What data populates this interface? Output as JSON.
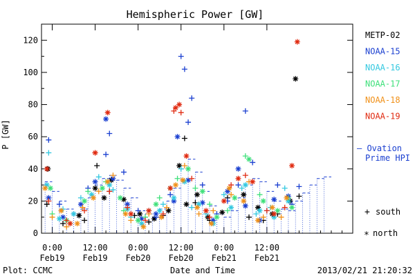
{
  "chart_data": {
    "type": "scatter",
    "title": "Hemispheric Power [GW]",
    "ylabel": "P [GW]",
    "xlabel": "Date and Time",
    "ylim": [
      0,
      130
    ],
    "yticks": [
      0,
      20,
      40,
      60,
      80,
      100,
      120
    ],
    "xlim": [
      -3,
      84
    ],
    "x_unit": "hours since Feb19 00:00",
    "xticks": [
      {
        "x": 0,
        "time": "0:00",
        "date": "Feb19"
      },
      {
        "x": 12,
        "time": "12:00",
        "date": "Feb19"
      },
      {
        "x": 24,
        "time": "0:00",
        "date": "Feb20"
      },
      {
        "x": 36,
        "time": "12:00",
        "date": "Feb20"
      },
      {
        "x": 48,
        "time": "0:00",
        "date": "Feb21"
      },
      {
        "x": 60,
        "time": "12:00",
        "date": "Feb21"
      }
    ],
    "legend": [
      {
        "name": "METP-02",
        "color": "#000000"
      },
      {
        "name": "NOAA-15",
        "color": "#1a3fd0"
      },
      {
        "name": "NOAA-16",
        "color": "#33c8e0"
      },
      {
        "name": "NOAA-17",
        "color": "#3ee07a"
      },
      {
        "name": "NOAA-18",
        "color": "#f09018"
      },
      {
        "name": "NOAA-19",
        "color": "#e02a10"
      }
    ],
    "ovation_label": "Ovation Prime HPI",
    "ovation_label_lines": [
      "— Ovation",
      "Prime HPI"
    ],
    "ovation_color": "#1a3fd0",
    "marker_legend": [
      {
        "symbol": "+",
        "label": "south"
      },
      {
        "symbol": "*",
        "label": "north"
      }
    ],
    "footer": {
      "left": "Plot: CCMC",
      "right": "2013/02/21 21:20:32"
    },
    "ovation_series": {
      "x": [
        -2,
        0,
        2,
        4,
        6,
        8,
        10,
        12,
        14,
        16,
        18,
        20,
        22,
        24,
        26,
        28,
        30,
        32,
        34,
        36,
        38,
        40,
        42,
        44,
        46,
        48,
        50,
        52,
        54,
        56,
        58,
        60,
        62,
        64,
        66,
        68,
        70,
        72,
        74,
        76
      ],
      "y": [
        32,
        26,
        20,
        15,
        12,
        15,
        22,
        30,
        34,
        36,
        33,
        28,
        22,
        14,
        12,
        10,
        15,
        20,
        28,
        40,
        46,
        38,
        26,
        17,
        12,
        10,
        14,
        22,
        30,
        34,
        32,
        26,
        20,
        15,
        14,
        20,
        25,
        30,
        34,
        35
      ]
    },
    "series": [
      {
        "name": "METP-02",
        "color": "#000000",
        "north": [
          [
            -1.2,
            40
          ],
          [
            7.5,
            11
          ],
          [
            12,
            28
          ],
          [
            14.5,
            22
          ],
          [
            16.5,
            33
          ],
          [
            20,
            21
          ],
          [
            24.5,
            12
          ],
          [
            28.5,
            9
          ],
          [
            32.5,
            14
          ],
          [
            35.5,
            42
          ],
          [
            37.5,
            18
          ],
          [
            40.5,
            24
          ],
          [
            43.5,
            10
          ],
          [
            47.5,
            13
          ],
          [
            53.5,
            24
          ],
          [
            57.5,
            16
          ],
          [
            61.5,
            12
          ],
          [
            66.5,
            20
          ],
          [
            68,
            96
          ]
        ],
        "south": [
          [
            -1.5,
            18
          ],
          [
            3,
            6
          ],
          [
            9,
            8
          ],
          [
            12.5,
            42
          ],
          [
            16,
            26
          ],
          [
            23,
            11
          ],
          [
            27,
            7
          ],
          [
            31,
            11
          ],
          [
            37,
            59
          ],
          [
            40,
            19
          ],
          [
            44,
            8
          ],
          [
            49,
            22
          ],
          [
            55,
            10
          ],
          [
            59,
            8
          ],
          [
            63,
            12
          ],
          [
            69,
            23
          ]
        ]
      },
      {
        "name": "NOAA-15",
        "color": "#1a3fd0",
        "north": [
          [
            -1,
            22
          ],
          [
            3,
            10
          ],
          [
            8,
            18
          ],
          [
            12,
            32
          ],
          [
            15,
            71
          ],
          [
            17,
            34
          ],
          [
            21,
            18
          ],
          [
            25,
            9
          ],
          [
            29,
            12
          ],
          [
            34,
            20
          ],
          [
            35,
            60
          ],
          [
            38,
            33
          ],
          [
            42,
            19
          ],
          [
            45,
            8
          ],
          [
            49,
            26
          ],
          [
            52,
            40
          ],
          [
            54,
            17
          ],
          [
            58,
            8
          ],
          [
            62,
            21
          ],
          [
            66,
            23
          ]
        ],
        "south": [
          [
            -1,
            58
          ],
          [
            2,
            18
          ],
          [
            6,
            12
          ],
          [
            10,
            28
          ],
          [
            15,
            49
          ],
          [
            16,
            62
          ],
          [
            20,
            38
          ],
          [
            24,
            14
          ],
          [
            29,
            10
          ],
          [
            33,
            24
          ],
          [
            36,
            110
          ],
          [
            37,
            102
          ],
          [
            38,
            69
          ],
          [
            39,
            84
          ],
          [
            42,
            30
          ],
          [
            46,
            12
          ],
          [
            49,
            20
          ],
          [
            52,
            30
          ],
          [
            54,
            76
          ],
          [
            56,
            44
          ],
          [
            60,
            14
          ],
          [
            63,
            30
          ],
          [
            67,
            18
          ],
          [
            69,
            29
          ]
        ]
      },
      {
        "name": "NOAA-16",
        "color": "#33c8e0",
        "north": [
          [
            -1.5,
            30
          ],
          [
            2,
            9
          ],
          [
            6,
            12
          ],
          [
            11,
            24
          ],
          [
            16,
            30
          ],
          [
            21,
            15
          ],
          [
            25,
            6
          ],
          [
            30,
            14
          ],
          [
            34,
            22
          ],
          [
            37,
            32
          ],
          [
            41,
            18
          ],
          [
            45,
            6
          ],
          [
            50,
            16
          ],
          [
            54,
            30
          ],
          [
            58,
            14
          ],
          [
            62,
            10
          ],
          [
            66,
            20
          ]
        ],
        "south": [
          [
            -1,
            50
          ],
          [
            3,
            15
          ],
          [
            8,
            22
          ],
          [
            13,
            35
          ],
          [
            17,
            27
          ],
          [
            22,
            10
          ],
          [
            27,
            14
          ],
          [
            31,
            18
          ],
          [
            36,
            40
          ],
          [
            39,
            16
          ],
          [
            43,
            12
          ],
          [
            48,
            24
          ],
          [
            53,
            28
          ],
          [
            57,
            12
          ],
          [
            61,
            16
          ],
          [
            65,
            28
          ]
        ]
      },
      {
        "name": "NOAA-17",
        "color": "#3ee07a",
        "north": [
          [
            -0.5,
            28
          ],
          [
            4,
            8
          ],
          [
            9,
            20
          ],
          [
            14,
            28
          ],
          [
            19,
            22
          ],
          [
            24,
            8
          ],
          [
            29,
            18
          ],
          [
            33,
            28
          ],
          [
            38,
            40
          ],
          [
            42,
            26
          ],
          [
            46,
            10
          ],
          [
            51,
            22
          ],
          [
            55,
            46
          ],
          [
            59,
            20
          ],
          [
            63,
            14
          ],
          [
            67,
            16
          ]
        ],
        "south": [
          [
            0,
            12
          ],
          [
            5,
            6
          ],
          [
            10,
            26
          ],
          [
            15,
            32
          ],
          [
            20,
            14
          ],
          [
            26,
            10
          ],
          [
            30,
            22
          ],
          [
            35,
            34
          ],
          [
            40,
            28
          ],
          [
            44,
            18
          ],
          [
            49,
            14
          ],
          [
            54,
            48
          ],
          [
            58,
            24
          ],
          [
            62,
            12
          ],
          [
            66,
            22
          ]
        ]
      },
      {
        "name": "NOAA-18",
        "color": "#f09018",
        "north": [
          [
            -2,
            28
          ],
          [
            2.5,
            14
          ],
          [
            7,
            6
          ],
          [
            11.5,
            22
          ],
          [
            15.5,
            32
          ],
          [
            20.5,
            12
          ],
          [
            25.5,
            4
          ],
          [
            30.5,
            10
          ],
          [
            34.5,
            30
          ],
          [
            36.5,
            33
          ],
          [
            40.5,
            16
          ],
          [
            44.5,
            6
          ],
          [
            49.5,
            28
          ],
          [
            53.5,
            20
          ],
          [
            57.5,
            8
          ],
          [
            61.5,
            16
          ],
          [
            65.5,
            22
          ]
        ],
        "south": [
          [
            0,
            10
          ],
          [
            4,
            4
          ],
          [
            8.5,
            16
          ],
          [
            13,
            26
          ],
          [
            17,
            36
          ],
          [
            22,
            8
          ],
          [
            27,
            12
          ],
          [
            32,
            16
          ],
          [
            37,
            42
          ],
          [
            41,
            12
          ],
          [
            45,
            14
          ],
          [
            50,
            24
          ],
          [
            55,
            32
          ],
          [
            59,
            10
          ],
          [
            64,
            10
          ]
        ]
      },
      {
        "name": "NOAA-19",
        "color": "#e02a10",
        "north": [
          [
            -1.5,
            40
          ],
          [
            5,
            6
          ],
          [
            12,
            50
          ],
          [
            15.5,
            75
          ],
          [
            22,
            12
          ],
          [
            27,
            14
          ],
          [
            33,
            28
          ],
          [
            34.5,
            78
          ],
          [
            35.5,
            80
          ],
          [
            37.5,
            48
          ],
          [
            43,
            14
          ],
          [
            48,
            20
          ],
          [
            52,
            34
          ],
          [
            56,
            32
          ],
          [
            62,
            12
          ],
          [
            67,
            42
          ],
          [
            68.5,
            119
          ]
        ],
        "south": [
          [
            -1,
            20
          ],
          [
            4,
            8
          ],
          [
            9,
            14
          ],
          [
            12,
            50
          ],
          [
            16,
            26
          ],
          [
            21,
            16
          ],
          [
            26,
            8
          ],
          [
            31,
            12
          ],
          [
            34,
            76
          ],
          [
            36,
            75
          ],
          [
            39,
            34
          ],
          [
            44,
            10
          ],
          [
            50,
            30
          ],
          [
            54,
            36
          ],
          [
            60,
            14
          ],
          [
            65,
            16
          ]
        ]
      }
    ]
  }
}
